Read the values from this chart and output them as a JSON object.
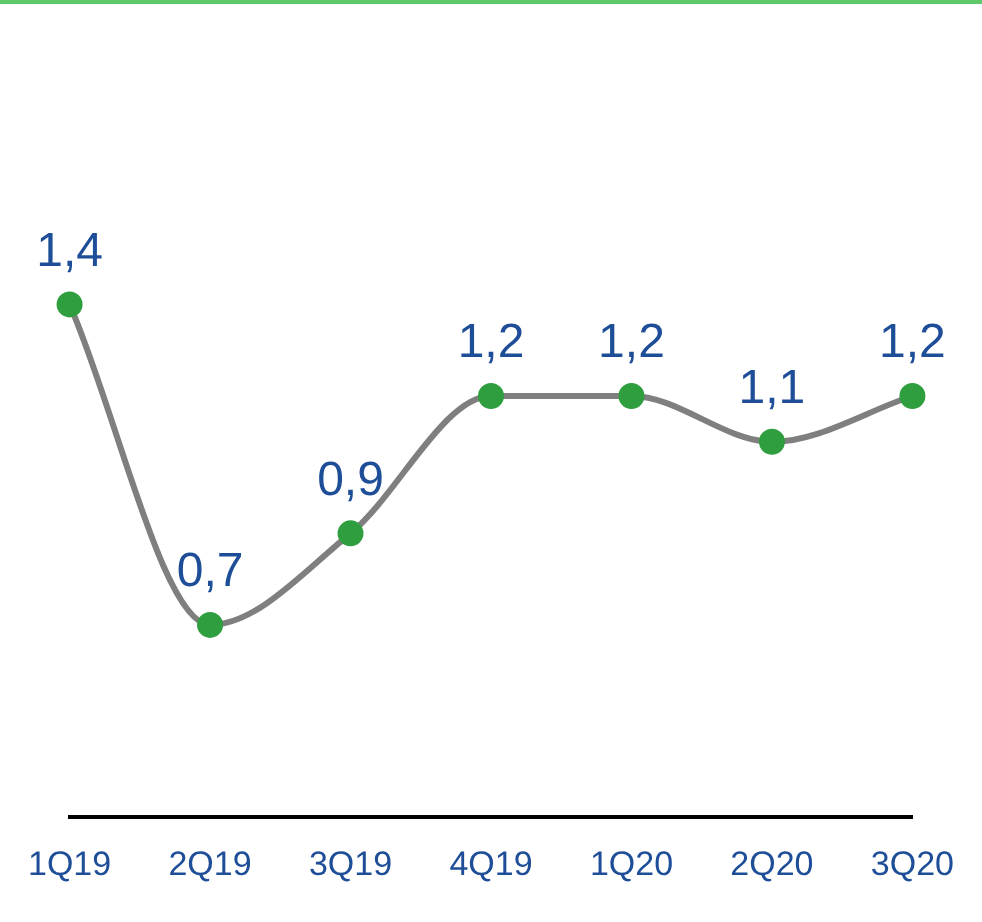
{
  "chart_data": {
    "type": "line",
    "categories": [
      "1Q19",
      "2Q19",
      "3Q19",
      "4Q19",
      "1Q20",
      "2Q20",
      "3Q20"
    ],
    "series": [
      {
        "color": "#7f7f7f",
        "colors": [
          "#2e9e3e",
          "#2e9e3e",
          "#2e9e3e",
          "#2e9e3e",
          "#2e9e3e",
          "#2e9e3e",
          "#2e9e3e"
        ],
        "values": [
          1.4,
          0.7,
          0.9,
          1.2,
          1.2,
          1.1,
          1.2
        ],
        "value_labels": [
          "1,4",
          "0,7",
          "0,9",
          "1,2",
          "1,2",
          "1,1",
          "1,2"
        ]
      }
    ],
    "grid": false,
    "legend": false,
    "marker": "circle",
    "line_style": "solid",
    "tick_labels": "x"
  }
}
